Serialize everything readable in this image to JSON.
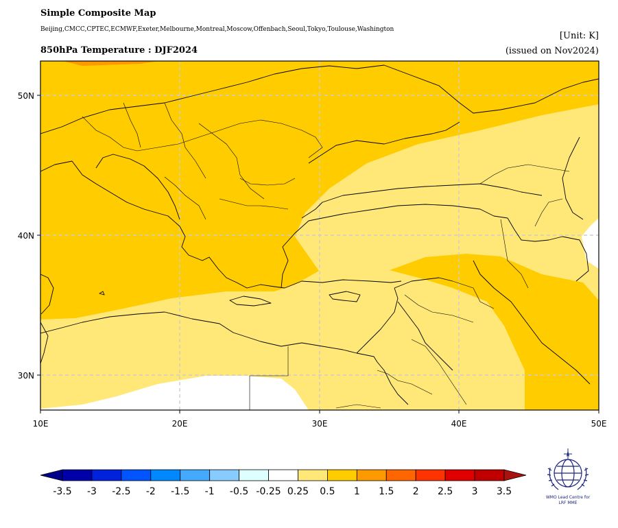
{
  "header": {
    "title": "Simple Composite Map",
    "centres": "Beijing,CMCC,CPTEC,ECMWF,Exeter,Melbourne,Montreal,Moscow,Offenbach,Seoul,Tokyo,Toulouse,Washington",
    "subtitle": "850hPa Temperature : DJF2024",
    "unit": "[Unit: K]",
    "issued": "(issued on Nov2024)"
  },
  "map": {
    "lon_ticks": [
      "10E",
      "20E",
      "30E",
      "40E",
      "50E"
    ],
    "lat_ticks": [
      "50N",
      "40N",
      "30N"
    ],
    "extent": {
      "lon": [
        10,
        50
      ],
      "lat": [
        27.5,
        52.5
      ]
    },
    "gridlines": true,
    "colors": {
      "anom_0_25_0_5": "#ffe878",
      "anom_0_5_1": "#ffcc00",
      "anom_1_1_5": "#ff9900",
      "near_zero": "#ffffff"
    }
  },
  "colorbar": {
    "labels": [
      "-3.5",
      "-3",
      "-2.5",
      "-2",
      "-1.5",
      "-1",
      "-0.5",
      "-0.25",
      "0.25",
      "0.5",
      "1",
      "1.5",
      "2",
      "2.5",
      "3",
      "3.5"
    ],
    "colors": [
      "#0000aa",
      "#0022dd",
      "#0055ff",
      "#0088ff",
      "#44aaff",
      "#88ccff",
      "#ddffff",
      "#ffffff",
      "#ffe878",
      "#ffcc00",
      "#ff9900",
      "#ff6600",
      "#ff3300",
      "#e00000",
      "#c00000"
    ],
    "under_color": "#000088",
    "over_color": "#aa1111"
  },
  "logo": {
    "name": "wmo-logo-icon",
    "text_line1": "WMO Lead Centre for",
    "text_line2": "LRF MME"
  }
}
